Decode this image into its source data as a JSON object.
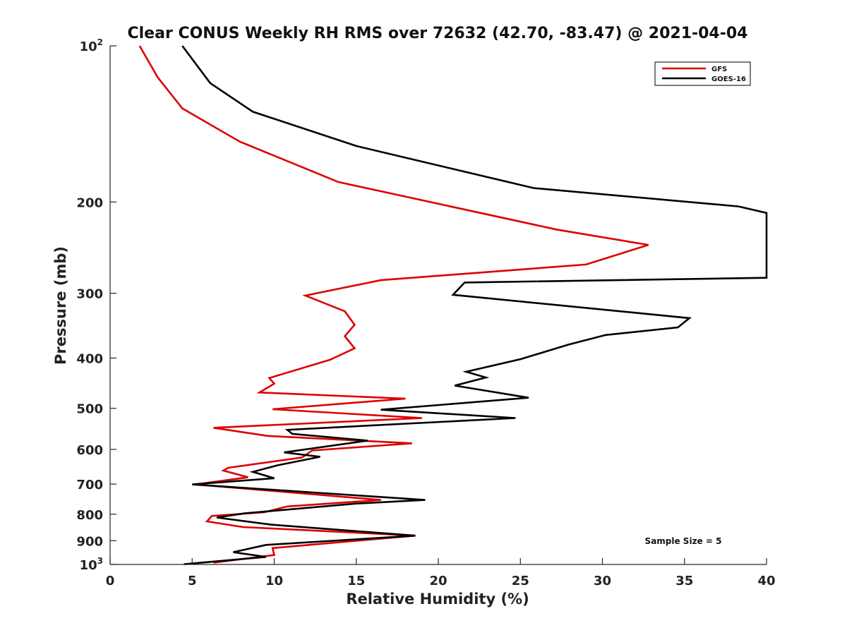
{
  "chart_data": {
    "type": "line",
    "title": "Clear CONUS Weekly RH RMS over 72632 (42.70, -83.47) @ 2021-04-04",
    "xlabel": "Relative Humidity (%)",
    "ylabel": "Pressure (mb)",
    "xlim": [
      0,
      40
    ],
    "ylim": [
      100,
      1000
    ],
    "y_scale": "log",
    "y_reversed": true,
    "x_ticks": [
      "0",
      "5",
      "10",
      "15",
      "20",
      "25",
      "30",
      "35",
      "40"
    ],
    "y_ticks": [
      {
        "value": 100,
        "base": "10",
        "exp": "2"
      },
      {
        "value": 200,
        "label": "200"
      },
      {
        "value": 300,
        "label": "300"
      },
      {
        "value": 400,
        "label": "400"
      },
      {
        "value": 500,
        "label": "500"
      },
      {
        "value": 600,
        "label": "600"
      },
      {
        "value": 700,
        "label": "700"
      },
      {
        "value": 800,
        "label": "800"
      },
      {
        "value": 900,
        "label": "900"
      },
      {
        "value": 1000,
        "base": "10",
        "exp": "3"
      }
    ],
    "legend_position": "top-right",
    "annotation": "Sample Size = 5",
    "series": [
      {
        "name": "GFS",
        "color": "#dd0000",
        "points": [
          [
            1.8,
            100
          ],
          [
            2.9,
            115
          ],
          [
            4.4,
            132
          ],
          [
            7.9,
            153
          ],
          [
            13.9,
            183
          ],
          [
            27.2,
            226
          ],
          [
            32.8,
            242
          ],
          [
            29.0,
            264
          ],
          [
            16.5,
            283
          ],
          [
            11.9,
            303
          ],
          [
            14.3,
            325
          ],
          [
            14.9,
            345
          ],
          [
            14.3,
            363
          ],
          [
            14.9,
            383
          ],
          [
            13.4,
            403
          ],
          [
            9.7,
            437
          ],
          [
            10.0,
            448
          ],
          [
            9.1,
            466
          ],
          [
            18.0,
            479
          ],
          [
            9.9,
            502
          ],
          [
            19.0,
            522
          ],
          [
            6.3,
            545
          ],
          [
            9.6,
            565
          ],
          [
            18.4,
            584
          ],
          [
            12.3,
            603
          ],
          [
            11.7,
            622
          ],
          [
            7.2,
            651
          ],
          [
            6.9,
            659
          ],
          [
            8.4,
            679
          ],
          [
            5.2,
            701
          ],
          [
            16.5,
            751
          ],
          [
            10.8,
            773
          ],
          [
            9.4,
            793
          ],
          [
            6.2,
            806
          ],
          [
            5.9,
            826
          ],
          [
            8.1,
            847
          ],
          [
            18.6,
            880
          ],
          [
            9.9,
            930
          ],
          [
            10.0,
            959
          ],
          [
            6.3,
            992
          ]
        ]
      },
      {
        "name": "GOES-16",
        "color": "#000000",
        "points": [
          [
            4.4,
            100
          ],
          [
            6.1,
            118
          ],
          [
            8.7,
            134
          ],
          [
            15.0,
            156
          ],
          [
            25.8,
            188
          ],
          [
            38.3,
            204
          ],
          [
            40.0,
            210
          ],
          [
            40.0,
            280
          ],
          [
            21.6,
            286
          ],
          [
            20.9,
            302
          ],
          [
            35.3,
            335
          ],
          [
            34.6,
            349
          ],
          [
            30.2,
            361
          ],
          [
            27.9,
            377
          ],
          [
            25.0,
            402
          ],
          [
            21.7,
            425
          ],
          [
            22.9,
            436
          ],
          [
            21.0,
            452
          ],
          [
            25.5,
            477
          ],
          [
            16.5,
            503
          ],
          [
            24.7,
            522
          ],
          [
            10.8,
            550
          ],
          [
            11.1,
            560
          ],
          [
            15.7,
            577
          ],
          [
            10.6,
            608
          ],
          [
            12.8,
            620
          ],
          [
            10.2,
            644
          ],
          [
            8.7,
            663
          ],
          [
            10.0,
            682
          ],
          [
            5.0,
            701
          ],
          [
            19.2,
            751
          ],
          [
            15.0,
            763
          ],
          [
            8.2,
            797
          ],
          [
            6.5,
            812
          ],
          [
            9.8,
            838
          ],
          [
            18.6,
            880
          ],
          [
            9.5,
            917
          ],
          [
            7.5,
            947
          ],
          [
            9.5,
            967
          ],
          [
            4.5,
            999
          ]
        ]
      }
    ]
  }
}
